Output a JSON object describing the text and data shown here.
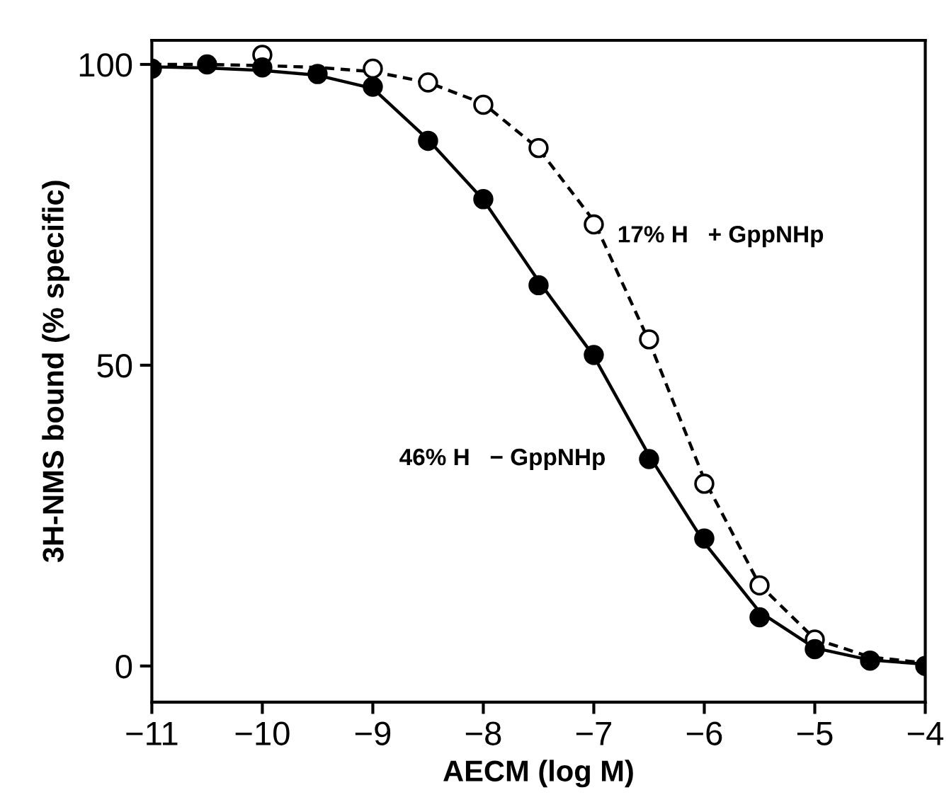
{
  "chart_data": {
    "type": "line",
    "xlabel": "AECM (log M)",
    "ylabel": "3H-NMS bound (% specific)",
    "xlim": [
      -11,
      -4
    ],
    "xticks": [
      {
        "value": -11,
        "label": "−11"
      },
      {
        "value": -10,
        "label": "−10"
      },
      {
        "value": -9,
        "label": "−9"
      },
      {
        "value": -8,
        "label": "−8"
      },
      {
        "value": -7,
        "label": "−7"
      },
      {
        "value": -6,
        "label": "−6"
      },
      {
        "value": -5,
        "label": "−5"
      },
      {
        "value": -4,
        "label": "−4"
      }
    ],
    "ylim": [
      -6,
      104
    ],
    "yticks": [
      0,
      50,
      100
    ],
    "grid": false,
    "legend": false,
    "series": [
      {
        "line_style": "dashed",
        "marker": "none",
        "color": "#000000",
        "x": [
          -11,
          -10.5,
          -10,
          -9.5,
          -9,
          -8.5,
          -8,
          -7.5,
          -7,
          -6.5,
          -6,
          -5.5,
          -5,
          -4.5,
          -4
        ],
        "values": [
          100,
          100,
          99.8,
          99.5,
          98.8,
          97,
          93.5,
          86,
          74,
          54,
          31,
          13.5,
          4.5,
          1.5,
          0.5
        ]
      },
      {
        "line_style": "solid",
        "marker": "none",
        "color": "#000000",
        "x": [
          -11,
          -10.5,
          -10,
          -9.5,
          -9,
          -8.5,
          -8,
          -7.5,
          -7,
          -6.5,
          -6,
          -5.5,
          -5,
          -4.5,
          -4
        ],
        "values": [
          99.6,
          99.4,
          99,
          98.2,
          96,
          87.5,
          77.5,
          64,
          51.5,
          35,
          20.5,
          9,
          3,
          1,
          0.3
        ]
      },
      {
        "type": "scatter",
        "marker": "circle",
        "color": "#ffffff",
        "x": [
          -10,
          -9,
          -8.5,
          -8,
          -7.5,
          -7,
          -6.5,
          -6,
          -5.5,
          -5
        ],
        "values": [
          101.6,
          99.3,
          97,
          93.3,
          86.1,
          73.4,
          54.3,
          30.3,
          13.4,
          4.4
        ]
      },
      {
        "type": "scatter",
        "marker": "circle",
        "color": "#000000",
        "x": [
          -11,
          -10.5,
          -10,
          -9.5,
          -9,
          -8.5,
          -8,
          -7.5,
          -7,
          -6.5,
          -6,
          -5.5,
          -5,
          -4.5,
          -4
        ],
        "values": [
          99.3,
          100,
          99.5,
          98.4,
          96.3,
          87.3,
          77.6,
          63.3,
          51.7,
          34.4,
          21.2,
          8.1,
          2.8,
          0.9,
          0
        ]
      }
    ],
    "annotations": [
      {
        "text": "17% H   + GppNHp",
        "x": -7,
        "y": 73.4
      },
      {
        "text": "46% H   − GppNHp",
        "x": -6.5,
        "y": 34.4
      }
    ]
  }
}
